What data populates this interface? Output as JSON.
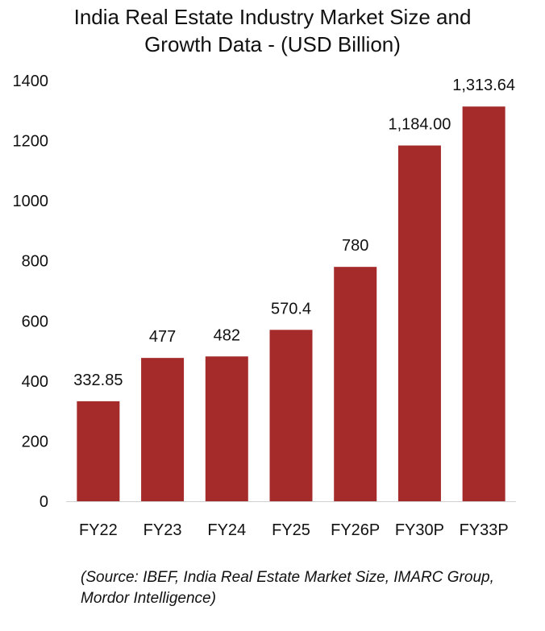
{
  "chart_data": {
    "type": "bar",
    "title": "India Real Estate Industry Market Size and Growth Data - (USD Billion)",
    "title_lines": [
      "India Real Estate Industry Market Size and",
      "Growth Data - (USD Billion)"
    ],
    "categories": [
      "FY22",
      "FY23",
      "FY24",
      "FY25",
      "FY26P",
      "FY30P",
      "FY33P"
    ],
    "values": [
      332.85,
      477,
      482,
      570.4,
      780,
      1184.0,
      1313.64
    ],
    "data_labels": [
      "332.85",
      "477",
      "482",
      "570.4",
      "780",
      "1,184.00",
      "1,313.64"
    ],
    "ylim": [
      0,
      1400
    ],
    "yticks": [
      0,
      200,
      400,
      600,
      800,
      1000,
      1200,
      1400
    ],
    "xlabel": "",
    "ylabel": "",
    "grid": false,
    "legend": "none",
    "bar_color": "#A52A2A"
  },
  "source": {
    "lines": [
      "(Source: IBEF, India Real Estate Market Size, IMARC Group,",
      "Mordor Intelligence)"
    ]
  }
}
